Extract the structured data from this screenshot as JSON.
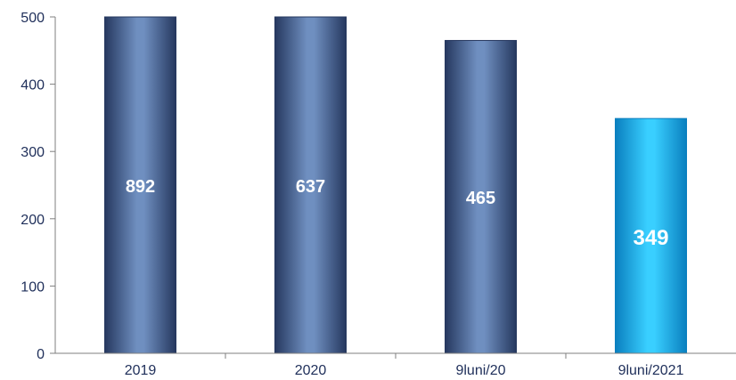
{
  "chart_data": {
    "type": "bar",
    "categories": [
      "2019",
      "2020",
      "9luni/20",
      "9luni/2021"
    ],
    "values": [
      892,
      637,
      465,
      349
    ],
    "data_labels": [
      "892",
      "637",
      "465",
      "349"
    ],
    "ylim": [
      0,
      500
    ],
    "yticks": [
      0,
      100,
      200,
      300,
      400,
      500
    ],
    "grid": false,
    "legend": "none",
    "title": "",
    "xlabel": "",
    "ylabel": "",
    "colors": {
      "bar_dark": "#26385f",
      "bar_light": "#6f8fc0",
      "highlight_dark": "#0a7fbf",
      "highlight_light": "#39cfff",
      "axis": "#7f7f7f",
      "text": "#1f2f5a",
      "label": "#ffffff"
    },
    "highlight_index": 3
  }
}
